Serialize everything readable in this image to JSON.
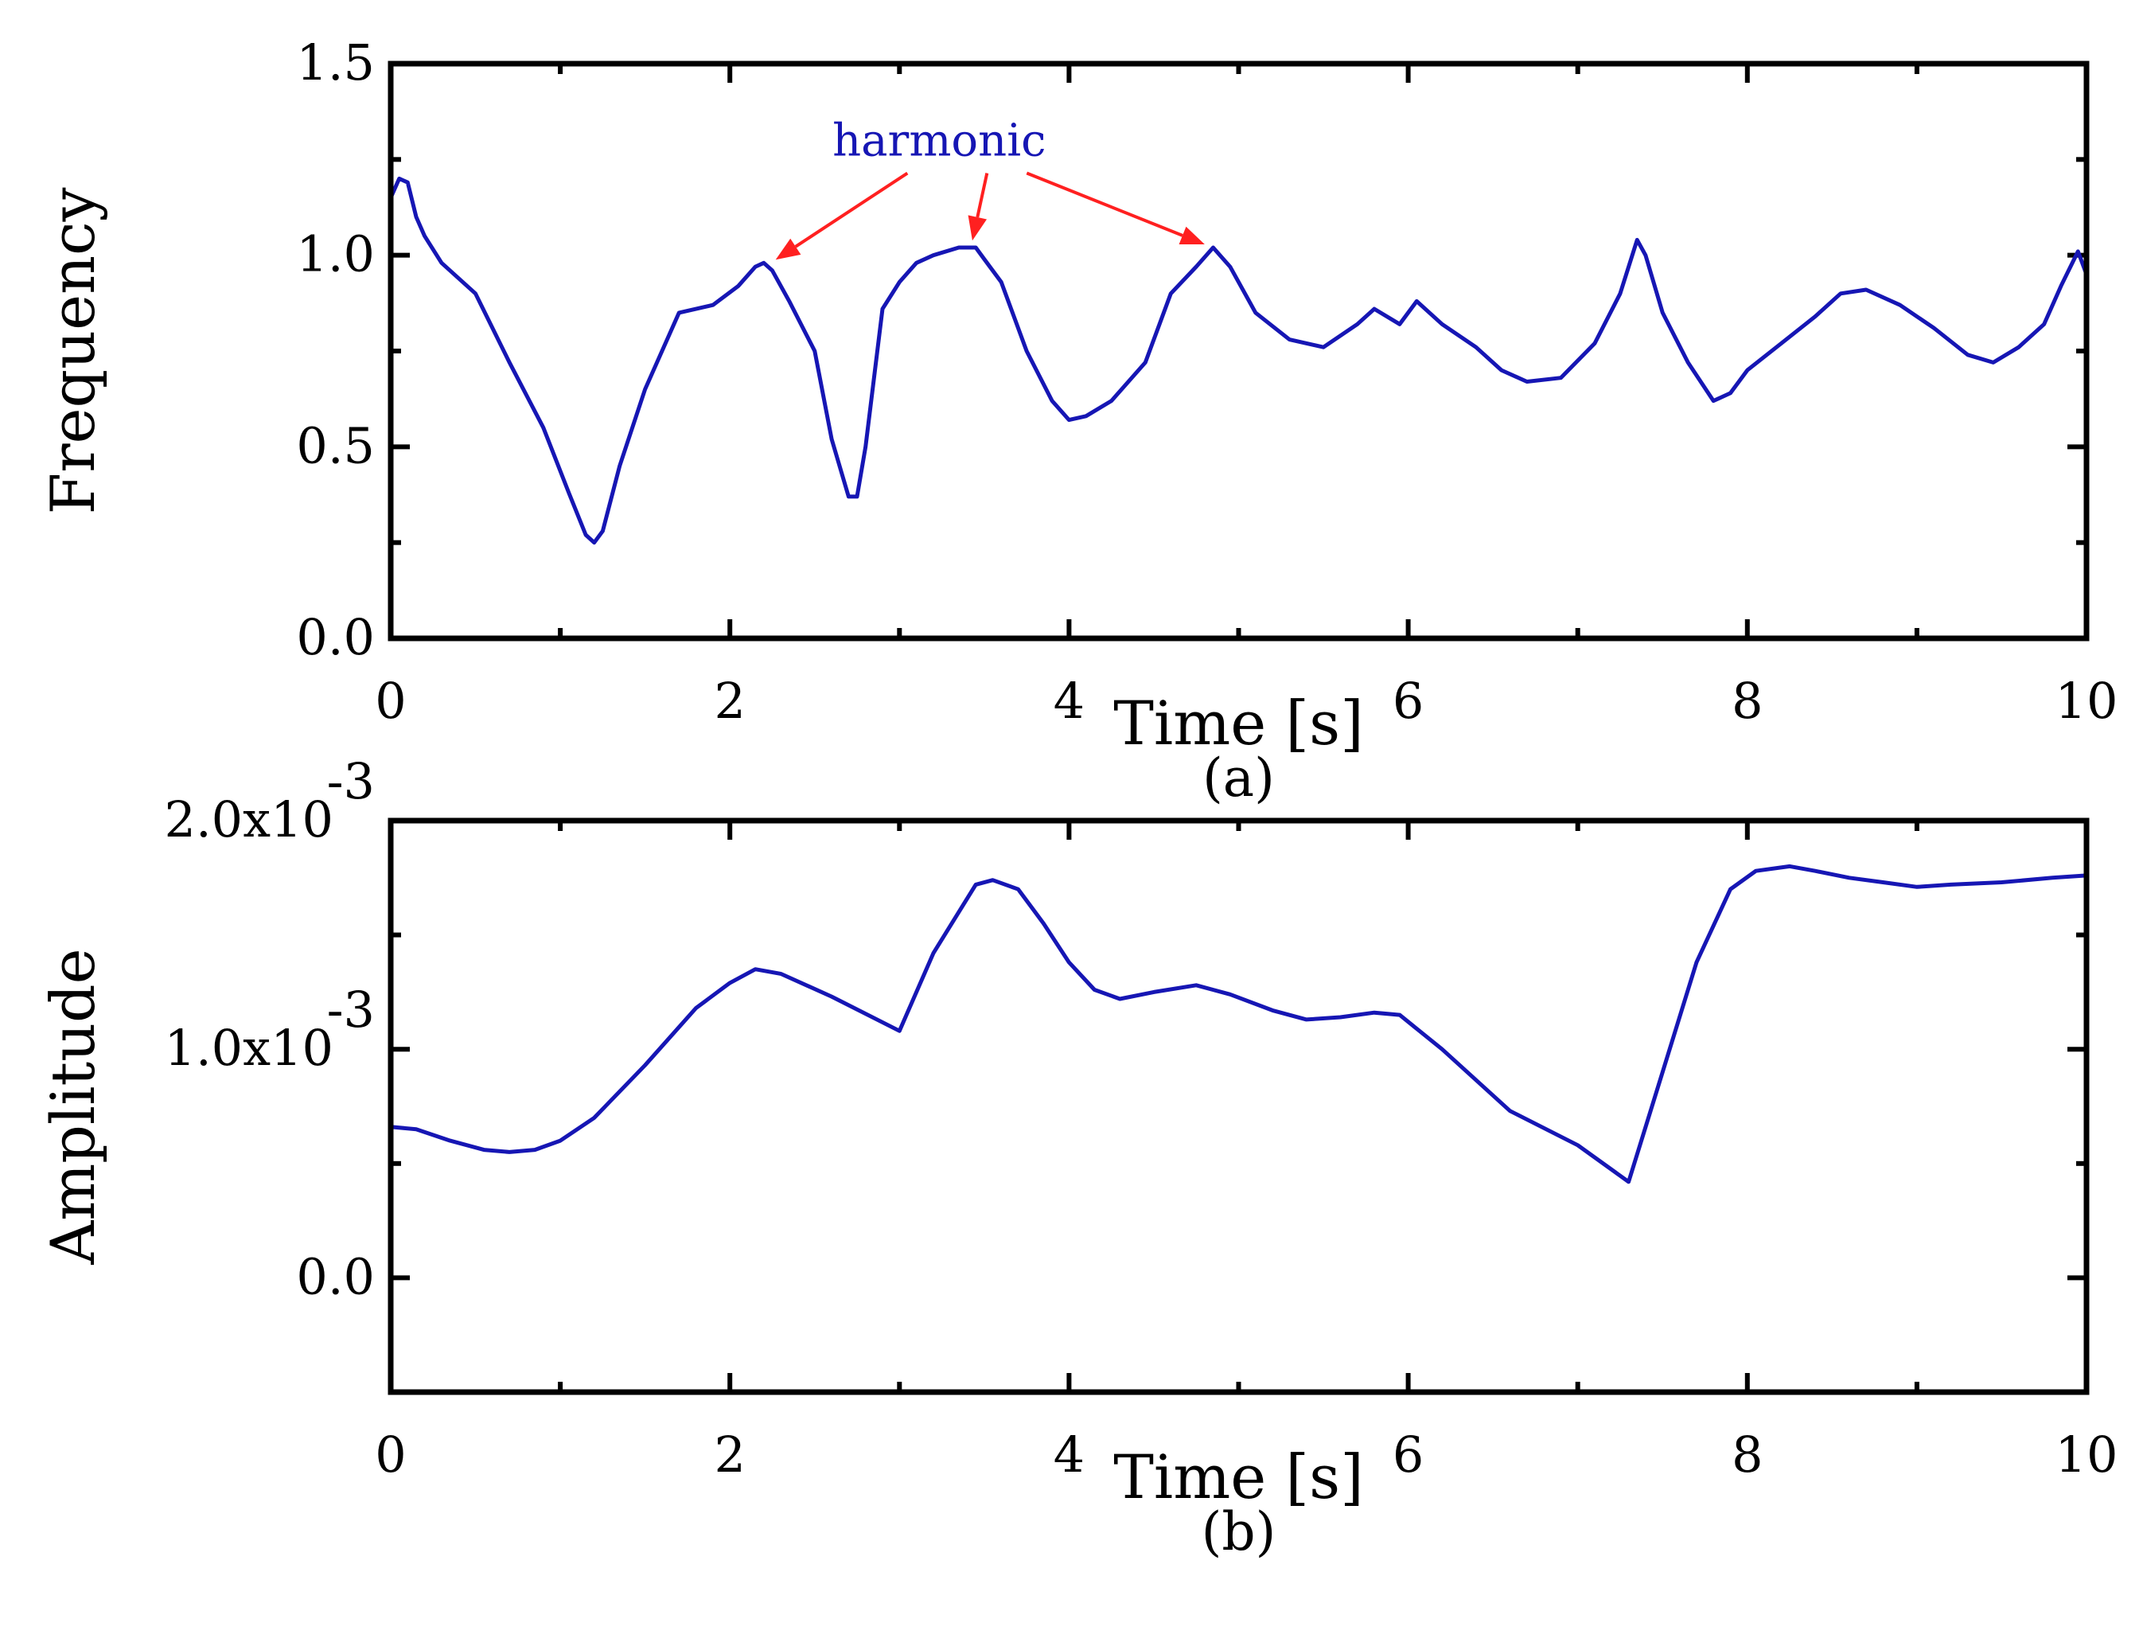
{
  "chart_data": [
    {
      "type": "line",
      "panel_label": "(a)",
      "xlabel": "Time [s]",
      "ylabel": "Frequency",
      "xlim": [
        0,
        10
      ],
      "ylim": [
        0,
        1.5
      ],
      "x_ticks": [
        "0",
        "2",
        "4",
        "6",
        "8",
        "10"
      ],
      "y_ticks": [
        "0.0",
        "0.5",
        "1.0",
        "1.5"
      ],
      "grid": false,
      "line_color": "#1616b4",
      "annotation": {
        "text": "harmonic",
        "text_color": "#1616b4",
        "arrow_color": "#ff2020",
        "points": [
          [
            2.27,
            0.98
          ],
          [
            3.43,
            1.03
          ],
          [
            4.8,
            1.02
          ]
        ]
      },
      "series": [
        {
          "x": [
            0,
            0.05,
            0.1,
            0.15,
            0.2,
            0.3,
            0.5,
            0.7,
            0.9,
            1.05,
            1.15,
            1.2,
            1.25,
            1.35,
            1.5,
            1.7,
            1.9,
            2.05,
            2.15,
            2.2,
            2.25,
            2.35,
            2.5,
            2.6,
            2.7,
            2.75,
            2.8,
            2.9,
            3.0,
            3.1,
            3.2,
            3.35,
            3.45,
            3.5,
            3.6,
            3.75,
            3.9,
            4.0,
            4.1,
            4.25,
            4.45,
            4.6,
            4.75,
            4.85,
            4.95,
            5.1,
            5.3,
            5.5,
            5.7,
            5.8,
            5.95,
            6.05,
            6.2,
            6.4,
            6.55,
            6.7,
            6.9,
            7.1,
            7.25,
            7.35,
            7.4,
            7.5,
            7.65,
            7.8,
            7.9,
            8.0,
            8.2,
            8.4,
            8.55,
            8.7,
            8.9,
            9.1,
            9.3,
            9.45,
            9.6,
            9.75,
            9.85,
            9.95,
            10.0
          ],
          "y": [
            1.15,
            1.2,
            1.19,
            1.1,
            1.05,
            0.98,
            0.9,
            0.72,
            0.55,
            0.38,
            0.27,
            0.25,
            0.28,
            0.45,
            0.65,
            0.85,
            0.87,
            0.92,
            0.97,
            0.98,
            0.96,
            0.88,
            0.75,
            0.52,
            0.37,
            0.37,
            0.5,
            0.86,
            0.93,
            0.98,
            1.0,
            1.02,
            1.02,
            0.99,
            0.93,
            0.75,
            0.62,
            0.57,
            0.58,
            0.62,
            0.72,
            0.9,
            0.97,
            1.02,
            0.97,
            0.85,
            0.78,
            0.76,
            0.82,
            0.86,
            0.82,
            0.88,
            0.82,
            0.76,
            0.7,
            0.67,
            0.68,
            0.77,
            0.9,
            1.04,
            1.0,
            0.85,
            0.72,
            0.62,
            0.64,
            0.7,
            0.77,
            0.84,
            0.9,
            0.91,
            0.87,
            0.81,
            0.74,
            0.72,
            0.76,
            0.82,
            0.92,
            1.01,
            0.95
          ]
        }
      ]
    },
    {
      "type": "line",
      "panel_label": "(b)",
      "xlabel": "Time [s]",
      "ylabel": "Amplitude",
      "xlim": [
        0,
        10
      ],
      "ylim": [
        -0.0005,
        0.002
      ],
      "x_ticks": [
        "0",
        "2",
        "4",
        "6",
        "8",
        "10"
      ],
      "y_ticks": [
        {
          "value": 0,
          "mantissa": "0.0",
          "exponent": ""
        },
        {
          "value": 0.001,
          "mantissa": "1.0x10",
          "exponent": "-3"
        },
        {
          "value": 0.002,
          "mantissa": "2.0x10",
          "exponent": "-3"
        }
      ],
      "grid": false,
      "line_color": "#1616b4",
      "series": [
        {
          "x": [
            0,
            0.15,
            0.35,
            0.55,
            0.7,
            0.85,
            1.0,
            1.2,
            1.5,
            1.8,
            2.0,
            2.15,
            2.3,
            2.6,
            3.0,
            3.2,
            3.45,
            3.55,
            3.7,
            3.85,
            4.0,
            4.15,
            4.3,
            4.5,
            4.75,
            4.95,
            5.2,
            5.4,
            5.6,
            5.8,
            5.95,
            6.2,
            6.6,
            7.0,
            7.3,
            7.5,
            7.7,
            7.9,
            8.05,
            8.25,
            8.4,
            8.6,
            8.8,
            9.0,
            9.2,
            9.5,
            9.8,
            10.0
          ],
          "y": [
            0.00066,
            0.00065,
            0.0006,
            0.00056,
            0.00055,
            0.00056,
            0.0006,
            0.0007,
            0.00093,
            0.00118,
            0.00129,
            0.00135,
            0.00133,
            0.00123,
            0.00108,
            0.00142,
            0.00172,
            0.00174,
            0.0017,
            0.00155,
            0.00138,
            0.00126,
            0.00122,
            0.00125,
            0.00128,
            0.00124,
            0.00117,
            0.00113,
            0.00114,
            0.00116,
            0.00115,
            0.001,
            0.00073,
            0.00058,
            0.00042,
            0.0009,
            0.00138,
            0.0017,
            0.00178,
            0.0018,
            0.00178,
            0.00175,
            0.00173,
            0.00171,
            0.00172,
            0.00173,
            0.00175,
            0.00176
          ]
        }
      ]
    }
  ]
}
